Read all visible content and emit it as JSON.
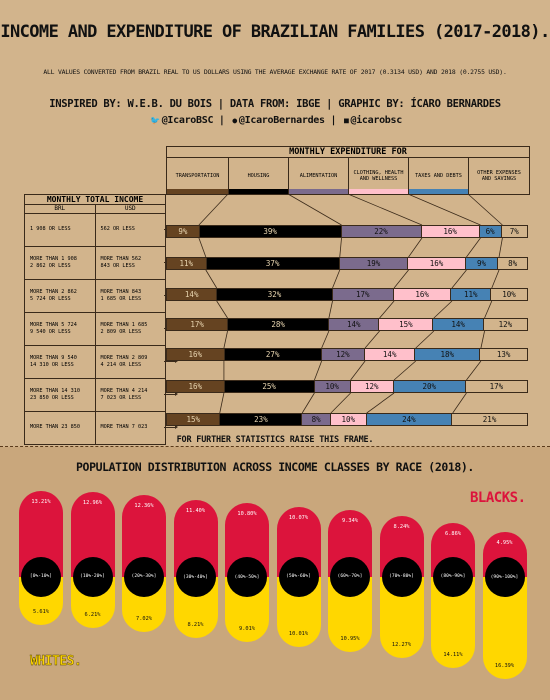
{
  "header": {
    "title": "INCOME AND EXPENDITURE OF BRAZILIAN FAMILIES (2017-2018).",
    "subtitle": "ALL VALUES CONVERTED FROM BRAZIL REAL TO US DOLLARS USING THE AVERAGE EXCHANGE RATE OF 2017 (0.3134 USD) AND 2018 (0.2755 USD).",
    "credits": "INSPIRED BY: W.E.B. DU BOIS | DATA FROM: IBGE | GRAPHIC BY: ÍCARO BERNARDES",
    "social": {
      "twitter": "@IcaroBSC",
      "github": "@IcaroBernardes",
      "linkedin": "@icarobsc",
      "sep": "|"
    }
  },
  "colors": {
    "transportation": "#654321",
    "housing": "#000000",
    "alimentation": "#7b6b8d",
    "clothing": "#ffc0cb",
    "taxes": "#4682b4",
    "other": "#d2b48c",
    "blacks": "#dc143c",
    "whites": "#ffd700"
  },
  "expenditure": {
    "header": "MONTHLY EXPENDITURE FOR",
    "categories": [
      "TRANSPORTATION",
      "HOUSING",
      "ALIMENTATION",
      "CLOTHING, HEALTH AND WELLNESS",
      "TAXES AND DEBTS",
      "OTHER EXPENSES AND SAVINGS"
    ]
  },
  "income": {
    "title": "MONTHLY TOTAL INCOME",
    "brl_label": "BRL",
    "usd_label": "USD",
    "rows": [
      {
        "brl": [
          "1 908 OR LESS"
        ],
        "usd": [
          "562 OR LESS"
        ]
      },
      {
        "brl": [
          "MORE THAN 1 908",
          "2 862 OR LESS"
        ],
        "usd": [
          "MORE THAN 562",
          "843 OR LESS"
        ]
      },
      {
        "brl": [
          "MORE THAN 2 862",
          "5 724 OR LESS"
        ],
        "usd": [
          "MORE THAN 843",
          "1 685 OR LESS"
        ]
      },
      {
        "brl": [
          "MORE THAN 5 724",
          "9 540 OR LESS"
        ],
        "usd": [
          "MORE THAN 1 685",
          "2 809 OR LESS"
        ]
      },
      {
        "brl": [
          "MORE THAN 9 540",
          "14 310 OR LESS"
        ],
        "usd": [
          "MORE THAN 2 809",
          "4 214 OR LESS"
        ]
      },
      {
        "brl": [
          "MORE THAN 14 310",
          "23 850 OR LESS"
        ],
        "usd": [
          "MORE THAN 4 214",
          "7 023 OR LESS"
        ]
      },
      {
        "brl": [
          "MORE THAN 23 850"
        ],
        "usd": [
          "MORE THAN 7 023"
        ]
      }
    ]
  },
  "raise_note": "FOR FURTHER STATISTICS RAISE THIS FRAME.",
  "population": {
    "title": "POPULATION DISTRIBUTION ACROSS INCOME CLASSES BY RACE (2018).",
    "blacks_label": "BLACKS.",
    "whites_label": "WHITES."
  },
  "chart_data": [
    {
      "type": "bar",
      "stacked": true,
      "orientation": "horizontal",
      "title": "MONTHLY EXPENDITURE FOR",
      "categories": [
        "1 908 OR LESS",
        "MORE THAN 1 908 2 862 OR LESS",
        "MORE THAN 2 862 5 724 OR LESS",
        "MORE THAN 5 724 9 540 OR LESS",
        "MORE THAN 9 540 14 310 OR LESS",
        "MORE THAN 14 310 23 850 OR LESS",
        "MORE THAN 23 850"
      ],
      "series": [
        {
          "name": "TRANSPORTATION",
          "values": [
            9,
            11,
            14,
            17,
            16,
            16,
            15
          ]
        },
        {
          "name": "HOUSING",
          "values": [
            39,
            37,
            32,
            28,
            27,
            25,
            23
          ]
        },
        {
          "name": "ALIMENTATION",
          "values": [
            22,
            19,
            17,
            14,
            12,
            10,
            8
          ]
        },
        {
          "name": "CLOTHING, HEALTH AND WELLNESS",
          "values": [
            16,
            16,
            16,
            15,
            14,
            12,
            10
          ]
        },
        {
          "name": "TAXES AND DEBTS",
          "values": [
            6,
            9,
            11,
            14,
            18,
            20,
            24
          ]
        },
        {
          "name": "OTHER EXPENSES AND SAVINGS",
          "values": [
            7,
            8,
            10,
            12,
            13,
            17,
            21
          ]
        }
      ],
      "labels": [
        [
          "9%",
          "39%",
          "22%",
          "16%",
          "6%",
          "7%"
        ],
        [
          "11%",
          "37%",
          "19%",
          "16%",
          "9%",
          "8%"
        ],
        [
          "14%",
          "32%",
          "17%",
          "16%",
          "11%",
          "10%"
        ],
        [
          "17%",
          "28%",
          "14%",
          "15%",
          "14%",
          "12%"
        ],
        [
          "16%",
          "27%",
          "12%",
          "14%",
          "18%",
          "13%"
        ],
        [
          "16%",
          "25%",
          "10%",
          "12%",
          "20%",
          "17%"
        ],
        [
          "15%",
          "23%",
          "8%",
          "10%",
          "24%",
          "21%"
        ]
      ]
    },
    {
      "type": "bar",
      "title": "POPULATION DISTRIBUTION ACROSS INCOME CLASSES BY RACE (2018).",
      "categories": [
        "[0%-10%]",
        "(10%-20%]",
        "(20%-30%]",
        "(30%-40%]",
        "(40%-50%]",
        "(50%-60%]",
        "(60%-70%]",
        "(70%-80%]",
        "(80%-90%]",
        "(90%-100%]"
      ],
      "series": [
        {
          "name": "BLACKS.",
          "values": [
            13.21,
            12.96,
            12.36,
            11.4,
            10.8,
            10.07,
            9.34,
            8.24,
            6.86,
            4.95
          ],
          "labels": [
            "13.21%",
            "12.96%",
            "12.36%",
            "11.40%",
            "10.80%",
            "10.07%",
            "9.34%",
            "8.24%",
            "6.86%",
            "4.95%"
          ]
        },
        {
          "name": "WHITES.",
          "values": [
            5.61,
            6.21,
            7.02,
            8.21,
            9.01,
            10.01,
            10.95,
            12.27,
            14.11,
            16.39
          ],
          "labels": [
            "5.61%",
            "6.21%",
            "7.02%",
            "8.21%",
            "9.01%",
            "10.01%",
            "10.95%",
            "12.27%",
            "14.11%",
            "16.39%"
          ]
        }
      ]
    }
  ]
}
